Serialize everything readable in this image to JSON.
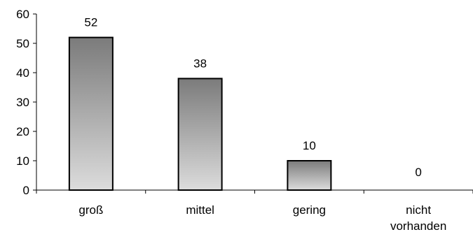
{
  "chart_data": {
    "type": "bar",
    "categories": [
      [
        "groß"
      ],
      [
        "mittel"
      ],
      [
        "gering"
      ],
      [
        "nicht",
        "vorhanden"
      ]
    ],
    "values": [
      52,
      38,
      10,
      0
    ],
    "data_labels": [
      "52",
      "38",
      "10",
      "0"
    ],
    "ylim": [
      0,
      60
    ],
    "yticks": [
      0,
      10,
      20,
      30,
      40,
      50,
      60
    ],
    "title": "",
    "xlabel": "",
    "ylabel": "",
    "grid": false,
    "legend": false,
    "bar_gradient": {
      "top": "#7b7b7b",
      "bottom": "#dcdcdc"
    },
    "bar_outline": "#000000"
  }
}
